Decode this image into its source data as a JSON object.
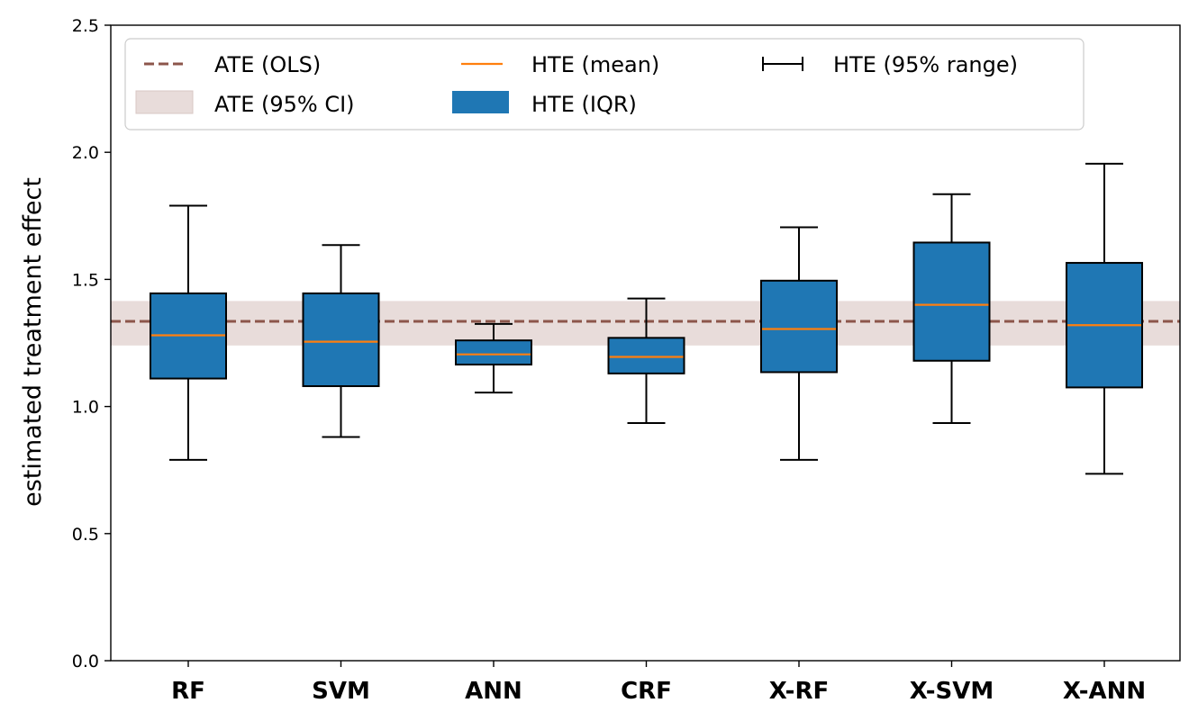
{
  "chart_data": {
    "type": "box",
    "title": "",
    "xlabel": "",
    "ylabel": "estimated treatment effect",
    "ylim": [
      0,
      2.5
    ],
    "yticks": [
      0.0,
      0.5,
      1.0,
      1.5,
      2.0,
      2.5
    ],
    "ytick_labels": [
      "0.0",
      "0.5",
      "1.0",
      "1.5",
      "2.0",
      "2.5"
    ],
    "categories": [
      "RF",
      "SVM",
      "ANN",
      "CRF",
      "X-RF",
      "X-SVM",
      "X-ANN"
    ],
    "boxes": [
      {
        "category": "RF",
        "whisker_low": 0.79,
        "q1": 1.11,
        "mean": 1.28,
        "q3": 1.445,
        "whisker_high": 1.79
      },
      {
        "category": "SVM",
        "whisker_low": 0.88,
        "q1": 1.08,
        "mean": 1.255,
        "q3": 1.445,
        "whisker_high": 1.635
      },
      {
        "category": "ANN",
        "whisker_low": 1.055,
        "q1": 1.165,
        "mean": 1.205,
        "q3": 1.26,
        "whisker_high": 1.325
      },
      {
        "category": "CRF",
        "whisker_low": 0.935,
        "q1": 1.13,
        "mean": 1.195,
        "q3": 1.27,
        "whisker_high": 1.425
      },
      {
        "category": "X-RF",
        "whisker_low": 0.79,
        "q1": 1.135,
        "mean": 1.305,
        "q3": 1.495,
        "whisker_high": 1.705
      },
      {
        "category": "X-SVM",
        "whisker_low": 0.935,
        "q1": 1.18,
        "mean": 1.4,
        "q3": 1.645,
        "whisker_high": 1.835
      },
      {
        "category": "X-ANN",
        "whisker_low": 0.735,
        "q1": 1.075,
        "mean": 1.32,
        "q3": 1.565,
        "whisker_high": 1.955
      }
    ],
    "ate_ols": 1.335,
    "ate_ci": [
      1.24,
      1.415
    ],
    "grid": false,
    "legend_position": "top",
    "legend": {
      "ate_ols": "ATE (OLS)",
      "ate_ci": "ATE (95% CI)",
      "hte_mean": "HTE (mean)",
      "hte_iqr": "HTE (IQR)",
      "hte_range": "HTE (95% range)"
    },
    "colors": {
      "box_fill": "#1f77b4",
      "mean_line": "#ff7f0e",
      "ate_line": "#8c564b",
      "ci_band": "#e8dcda",
      "edge": "#000000"
    }
  }
}
